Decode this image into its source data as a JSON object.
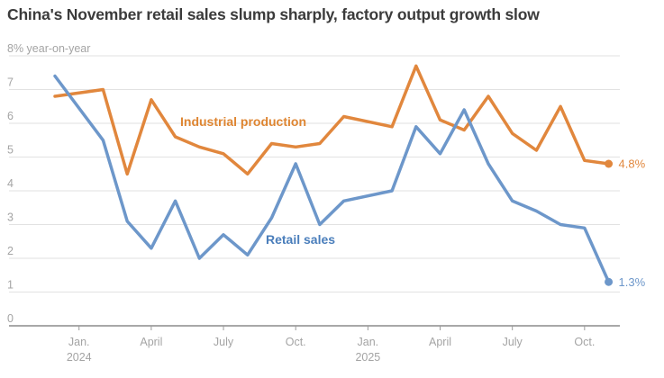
{
  "title": "China's November retail sales slump sharply, factory output growth slow",
  "chart_data": {
    "type": "line",
    "title": "China's November retail sales slump sharply, factory output growth slow",
    "y_axis_top_label": "8% year-on-year",
    "ylim": [
      0,
      8
    ],
    "y_gridlines": [
      0,
      1,
      2,
      3,
      4,
      5,
      6,
      7,
      8
    ],
    "y_tick_labels": [
      "0",
      "1",
      "2",
      "3",
      "4",
      "5",
      "6",
      "7"
    ],
    "grid": true,
    "legend_position": "inline-labels",
    "x_axis": {
      "unit": "month",
      "ticks": [
        {
          "pos": 1,
          "label": "Jan.",
          "year": "2024"
        },
        {
          "pos": 4,
          "label": "April"
        },
        {
          "pos": 7,
          "label": "July"
        },
        {
          "pos": 10,
          "label": "Oct."
        },
        {
          "pos": 13,
          "label": "Jan.",
          "year": "2025"
        },
        {
          "pos": 16,
          "label": "April"
        },
        {
          "pos": 19,
          "label": "July"
        },
        {
          "pos": 22,
          "label": "Oct."
        }
      ]
    },
    "series": [
      {
        "name": "Industrial production",
        "color": "#E1873D",
        "label_color": "#DE8531",
        "end_label": "4.8%",
        "x": [
          0,
          2,
          3,
          4,
          5,
          6,
          7,
          8,
          9,
          10,
          11,
          12,
          14,
          15,
          16,
          17,
          18,
          19,
          20,
          21,
          22,
          23
        ],
        "values": [
          6.8,
          7.0,
          4.5,
          6.7,
          5.6,
          5.3,
          5.1,
          4.5,
          5.4,
          5.3,
          5.4,
          6.2,
          5.9,
          7.7,
          6.1,
          5.8,
          6.8,
          5.7,
          5.2,
          6.5,
          4.9,
          4.8
        ]
      },
      {
        "name": "Retail sales",
        "color": "#6D97CA",
        "label_color": "#4A7EBB",
        "end_label": "1.3%",
        "x": [
          0,
          2,
          3,
          4,
          5,
          6,
          7,
          8,
          9,
          10,
          11,
          12,
          14,
          15,
          16,
          17,
          18,
          19,
          20,
          21,
          22,
          23
        ],
        "values": [
          7.4,
          5.5,
          3.1,
          2.3,
          3.7,
          2.0,
          2.7,
          2.1,
          3.2,
          4.8,
          3.0,
          3.7,
          4.0,
          5.9,
          5.1,
          6.4,
          4.8,
          3.7,
          3.4,
          3.0,
          2.9,
          1.3
        ]
      }
    ]
  }
}
